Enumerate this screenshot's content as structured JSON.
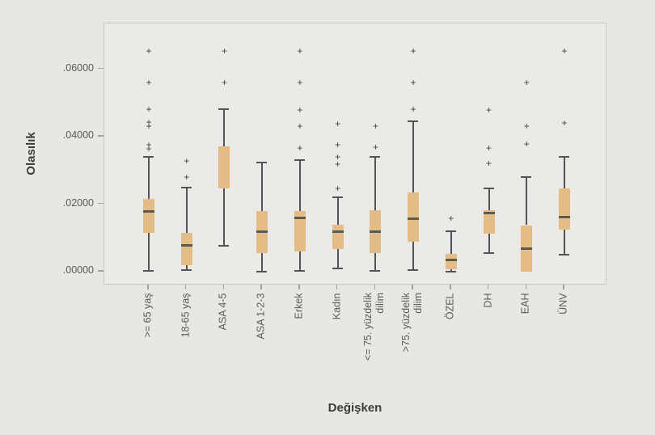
{
  "figure": {
    "background_color": "#e8e7e4",
    "plot_background_color": "#ebeae7",
    "plot_border_color": "#c9c8c5",
    "box_fill_color": "#e3bd85",
    "whisker_color": "#53545a",
    "median_color": "#5a5952",
    "outlier_color": "#3f4043",
    "tick_text_color": "#5a5a5a",
    "axis_title_color": "#3d3d3d",
    "outlier_marker": "+"
  },
  "chart_data": {
    "type": "box",
    "title": "",
    "xlabel": "Değişken",
    "ylabel": "Olasılık",
    "grid": false,
    "legend": null,
    "ylim": [
      -0.0041,
      0.0737
    ],
    "y_ticks": [
      ".00000",
      ".02000",
      ".04000",
      ".06000"
    ],
    "y_tick_values": [
      0.0,
      0.02,
      0.04,
      0.06
    ],
    "categories": [
      ">= 65 yaş",
      "18-65 yaş",
      "ASA 4-5",
      "ASA 1-2-3",
      "Erkek",
      "Kadın",
      "<= 75. yüzdelik dilim",
      ">75. yüzdelik dilim",
      "ÖZEL",
      "DH",
      "EAH",
      "ÜNV"
    ],
    "boxes": [
      {
        "label": ">= 65 yaş",
        "label_lines": [
          ">= 65 yaş"
        ],
        "whisker_low": 0.0002,
        "q1": 0.0115,
        "median": 0.018,
        "q3": 0.0216,
        "whisker_high": 0.0341,
        "outliers": [
          0.0365,
          0.0377,
          0.0432,
          0.0444,
          0.0482,
          0.0562,
          0.0655
        ]
      },
      {
        "label": "18-65 yaş",
        "label_lines": [
          "18-65 yaş"
        ],
        "whisker_low": 0.0005,
        "q1": 0.002,
        "median": 0.0079,
        "q3": 0.0116,
        "whisker_high": 0.025,
        "outliers": [
          0.0281,
          0.0328
        ]
      },
      {
        "label": "ASA 4-5",
        "label_lines": [
          "ASA 4-5"
        ],
        "whisker_low": 0.0077,
        "q1": 0.0248,
        "median": 0.0248,
        "q3": 0.0372,
        "whisker_high": 0.0482,
        "outliers": [
          0.0562,
          0.0655
        ]
      },
      {
        "label": "ASA 1-2-3",
        "label_lines": [
          "ASA 1-2-3"
        ],
        "whisker_low": 0.0001,
        "q1": 0.0056,
        "median": 0.0118,
        "q3": 0.018,
        "whisker_high": 0.0324,
        "outliers": []
      },
      {
        "label": "Erkek",
        "label_lines": [
          "Erkek"
        ],
        "whisker_low": 0.0002,
        "q1": 0.006,
        "median": 0.016,
        "q3": 0.018,
        "whisker_high": 0.0331,
        "outliers": [
          0.0367,
          0.0432,
          0.048,
          0.0562,
          0.0655
        ]
      },
      {
        "label": "Kadın",
        "label_lines": [
          "Kadın"
        ],
        "whisker_low": 0.001,
        "q1": 0.0067,
        "median": 0.012,
        "q3": 0.0139,
        "whisker_high": 0.0221,
        "outliers": [
          0.0247,
          0.0319,
          0.0341,
          0.0377,
          0.0439
        ]
      },
      {
        "label": "<= 75. yüzdelik dilim",
        "label_lines": [
          "<= 75. yüzdelik",
          "dilim"
        ],
        "whisker_low": 0.0002,
        "q1": 0.0056,
        "median": 0.012,
        "q3": 0.0182,
        "whisker_high": 0.0341,
        "outliers": [
          0.037,
          0.0432
        ]
      },
      {
        "label": ">75. yüzdelik dilim",
        "label_lines": [
          ">75. yüzdelik",
          "dilim"
        ],
        "whisker_low": 0.0005,
        "q1": 0.0089,
        "median": 0.0158,
        "q3": 0.0235,
        "whisker_high": 0.0446,
        "outliers": [
          0.0482,
          0.0562,
          0.0655
        ]
      },
      {
        "label": "ÖZEL",
        "label_lines": [
          "ÖZEL"
        ],
        "whisker_low": 0.0001,
        "q1": 0.0008,
        "median": 0.0036,
        "q3": 0.0054,
        "whisker_high": 0.012,
        "outliers": [
          0.0158
        ]
      },
      {
        "label": "DH",
        "label_lines": [
          "DH"
        ],
        "whisker_low": 0.0055,
        "q1": 0.0113,
        "median": 0.0175,
        "q3": 0.0182,
        "whisker_high": 0.0246,
        "outliers": [
          0.0322,
          0.0368,
          0.048
        ]
      },
      {
        "label": "EAH",
        "label_lines": [
          "EAH"
        ],
        "whisker_low": 0.0001,
        "q1": 0.0001,
        "median": 0.0068,
        "q3": 0.0138,
        "whisker_high": 0.0281,
        "outliers": [
          0.038,
          0.0432,
          0.0562
        ]
      },
      {
        "label": "ÜNV",
        "label_lines": [
          "ÜNV"
        ],
        "whisker_low": 0.005,
        "q1": 0.0125,
        "median": 0.0163,
        "q3": 0.0247,
        "whisker_high": 0.034,
        "outliers": [
          0.0442,
          0.0656
        ]
      }
    ]
  }
}
